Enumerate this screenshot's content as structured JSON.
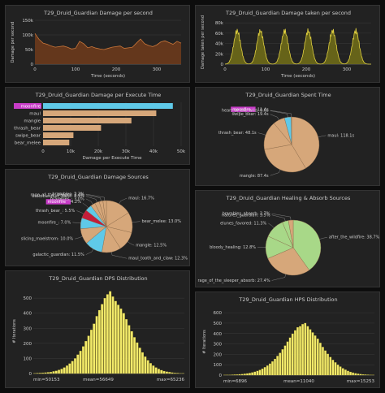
{
  "colors": {
    "bg": "#0d0d0d",
    "panel": "#222222",
    "text": "#cccccc",
    "axis": "#888888",
    "grid": "#3a3a3a",
    "dmg_fill": "#6b3a1c",
    "dmg_line": "#c8763a",
    "taken_fill": "#6e6a18",
    "taken_line": "#e0d040",
    "bar": "#d6a77a",
    "highlight": "#5fc9e8",
    "hist": "#f2ea6a",
    "pie_fill": "#d6a77a",
    "healing_green": "#a8d888"
  },
  "charts": [
    {
      "id": "damage-per-second",
      "type": "area",
      "title": "T29_Druid_Guardian Damage per second",
      "xlabel": "Time (seconds)",
      "ylabel": "Damage per second",
      "xticks": [
        0,
        100,
        200,
        300
      ],
      "xlim": [
        0,
        360
      ],
      "yticks": [
        0,
        50000,
        100000,
        150000
      ],
      "ytick_labels": [
        "0",
        "50k",
        "100k",
        "150k"
      ],
      "ylim": [
        0,
        150000
      ],
      "x": [
        0,
        5,
        10,
        20,
        30,
        40,
        50,
        60,
        70,
        80,
        90,
        100,
        110,
        120,
        130,
        140,
        150,
        160,
        170,
        180,
        190,
        200,
        210,
        220,
        230,
        240,
        250,
        260,
        270,
        280,
        290,
        300,
        310,
        320,
        330,
        340,
        350,
        360
      ],
      "values": [
        105000,
        95000,
        85000,
        72000,
        68000,
        62000,
        58000,
        60000,
        62000,
        58000,
        52000,
        54000,
        78000,
        70000,
        56000,
        60000,
        55000,
        52000,
        50000,
        54000,
        58000,
        60000,
        62000,
        54000,
        56000,
        58000,
        72000,
        86000,
        70000,
        64000,
        60000,
        66000,
        76000,
        80000,
        74000,
        68000,
        78000,
        72000
      ]
    },
    {
      "id": "damage-taken-per-second",
      "type": "area",
      "title": "T29_Druid_Guardian Damage taken per second",
      "xlabel": "Time (seconds)",
      "ylabel": "Damage taken per second",
      "xticks": [
        0,
        100,
        200,
        300
      ],
      "xlim": [
        0,
        360
      ],
      "yticks": [
        0,
        20000,
        40000,
        60000,
        80000
      ],
      "ytick_labels": [
        "0",
        "20k",
        "40k",
        "60k",
        "80k"
      ],
      "ylim": [
        0,
        85000
      ],
      "peaks": [
        30,
        87,
        147,
        205,
        265,
        322
      ],
      "peak_value": 70000
    },
    {
      "id": "damage-per-execute-time",
      "type": "bar",
      "title": "T29_Druid_Guardian Damage per Execute Time",
      "xlabel": "Damage per Execute Time",
      "xticks": [
        0,
        10000,
        20000,
        30000,
        40000,
        50000
      ],
      "xtick_labels": [
        "0",
        "10k",
        "20k",
        "30k",
        "40k",
        "50k"
      ],
      "xlim": [
        0,
        50000
      ],
      "categories": [
        "moonfire",
        "maul",
        "mangle",
        "thrash_bear",
        "swipe_bear",
        "bear_melee"
      ],
      "values": [
        47000,
        41000,
        32000,
        21000,
        11000,
        9500
      ],
      "highlight": "moonfire"
    },
    {
      "id": "spent-time",
      "type": "pie",
      "title": "T29_Druid_Guardian Spent Time",
      "slices": [
        {
          "label": "maul",
          "value": 118.1,
          "text": "maul: 118.1s",
          "color": "#d6a77a"
        },
        {
          "label": "mangle",
          "value": 87.4,
          "text": "mangle: 87.4s",
          "color": "#d6a77a"
        },
        {
          "label": "thrash_bear",
          "value": 48.1,
          "text": "thrash_bear: 48.1s",
          "color": "#d6a77a"
        },
        {
          "label": "swipe_bear",
          "value": 19.4,
          "text": "swipe_bear: 19.4s",
          "color": "#d6a77a"
        },
        {
          "label": "moonfire",
          "value": 11.4,
          "text": "11.4s",
          "color": "#5fc9e8",
          "highlight": true
        },
        {
          "label": "heart_of_the_wild",
          "value": 0.6,
          "text": "heart_of_the_wild: 0.6s",
          "color": "#d6a77a"
        }
      ]
    },
    {
      "id": "damage-sources",
      "type": "pie",
      "title": "T29_Druid_Guardian Damage Sources",
      "slices": [
        {
          "label": "maul",
          "value": 16.7,
          "text": "maul: 16.7%",
          "color": "#d6a77a"
        },
        {
          "label": "bear_melee",
          "value": 13.0,
          "text": "bear_melee: 13.0%",
          "color": "#d6a77a"
        },
        {
          "label": "mangle",
          "value": 12.5,
          "text": "mangle: 12.5%",
          "color": "#d6a77a"
        },
        {
          "label": "maul_tooth_and_claw",
          "value": 12.3,
          "text": "maul_tooth_and_claw: 12.3%",
          "color": "#d6a77a"
        },
        {
          "label": "galactic_guardian",
          "value": 11.5,
          "text": "galactic_guardian: 11.5%",
          "color": "#5fc9e8"
        },
        {
          "label": "slicing_maelstrom",
          "value": 10.0,
          "text": "slicing_maelstrom: 10.0%",
          "color": "#d6a77a"
        },
        {
          "label": "moonfire_",
          "value": 7.0,
          "text": "moonfire_: 7.0%",
          "color": "#5fc9e8"
        },
        {
          "label": "thrash_bear_bleed",
          "value": 5.5,
          "text": "thrash_bear_: 5.5%",
          "color": "#c41e3a"
        },
        {
          "label": "moonfire",
          "value": 4.2,
          "text": "4.2%",
          "color": "#5fc9e8",
          "highlight": true
        },
        {
          "label": "brambles_",
          "value": 3.0,
          "text": "brambles_: 3.0%",
          "color": "#d6a77a"
        },
        {
          "label": "bramblespurr_blast",
          "value": 2.9,
          "text": "bramblespurr_blast: 2.9%",
          "color": "#d6a77a"
        },
        {
          "label": "rage_of_the_sleeper",
          "value": 2.4,
          "text": "rage_of_the_sleeper: 2.4%",
          "color": "#d6a77a"
        },
        {
          "label": "brambles",
          "value": 2.2,
          "text": "brambles: 2.2%",
          "color": "#d6a77a"
        }
      ]
    },
    {
      "id": "healing-absorb-sources",
      "type": "pie",
      "title": "T29_Druid_Guardian Healing & Absorb Sources",
      "slices": [
        {
          "label": "after_the_wildfire",
          "value": 38.7,
          "text": "after_the_wildfire: 38.7%",
          "color": "#a8d888"
        },
        {
          "label": "rage_of_the_sleeper_absorb",
          "value": 27.4,
          "text": "rage_of_the_sleeper_absorb: 27.4%",
          "color": "#d6a77a"
        },
        {
          "label": "bloody_healing",
          "value": 12.8,
          "text": "bloody_healing: 12.8%",
          "color": "#a8d888"
        },
        {
          "label": "elunes_favored",
          "value": 11.3,
          "text": "elunes_favored: 11.3%",
          "color": "#a8d888"
        },
        {
          "label": "natures_guardian",
          "value": 3.5,
          "text": "natures_guardian: 3.5%",
          "color": "#a8d888"
        },
        {
          "label": "brambles_absorb",
          "value": 2.7,
          "text": "brambles_absorb: 2.7%",
          "color": "#d6a77a"
        }
      ]
    },
    {
      "id": "dps-distribution",
      "type": "bar",
      "title": "T29_Druid_Guardian DPS Distribution",
      "ylabel": "# Iterations",
      "yticks": [
        0,
        100,
        200,
        300,
        400,
        500
      ],
      "ylim": [
        0,
        560
      ],
      "min_label": "min=50153",
      "mean_label": "mean=56649",
      "max_label": "max=65236",
      "mean_fraction": 0.43,
      "values": [
        2,
        3,
        4,
        5,
        6,
        8,
        10,
        14,
        18,
        24,
        30,
        40,
        52,
        66,
        82,
        100,
        125,
        150,
        180,
        215,
        250,
        290,
        330,
        380,
        420,
        460,
        500,
        525,
        545,
        510,
        480,
        455,
        430,
        400,
        360,
        320,
        280,
        240,
        205,
        170,
        140,
        112,
        88,
        68,
        52,
        40,
        30,
        22,
        16,
        12,
        9,
        6,
        4,
        3,
        2,
        2
      ]
    },
    {
      "id": "hps-distribution",
      "type": "bar",
      "title": "T29_Druid_Guardian HPS Distribution",
      "ylabel": "# Iterations",
      "yticks": [
        0,
        100,
        200,
        300,
        400,
        500,
        600
      ],
      "ylim": [
        0,
        640
      ],
      "min_label": "min=6896",
      "mean_label": "mean=11040",
      "max_label": "max=15253",
      "mean_fraction": 0.5,
      "values": [
        2,
        3,
        3,
        4,
        5,
        6,
        8,
        10,
        13,
        16,
        20,
        26,
        32,
        40,
        50,
        62,
        76,
        92,
        110,
        132,
        156,
        184,
        214,
        248,
        284,
        322,
        360,
        398,
        430,
        460,
        470,
        490,
        500,
        470,
        440,
        410,
        380,
        350,
        310,
        270,
        236,
        204,
        174,
        146,
        122,
        100,
        82,
        66,
        52,
        40,
        31,
        24,
        18,
        13,
        10,
        7,
        5,
        4,
        3,
        2
      ]
    }
  ]
}
